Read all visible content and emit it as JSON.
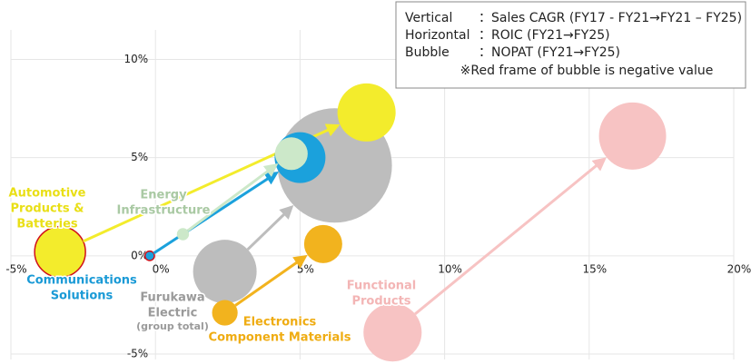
{
  "chart_data": {
    "type": "bubble",
    "legend": {
      "rows": [
        [
          "Vertical",
          "：Sales CAGR (FY17 - FY21→FY21 – FY25)"
        ],
        [
          "Horizontal",
          "：ROIC (FY21→FY25)"
        ],
        [
          "Bubble",
          "：NOPAT (FY21→FY25)"
        ]
      ],
      "note": "※Red frame of bubble is negative value"
    },
    "xlim": [
      -5,
      20
    ],
    "ylim": [
      -5,
      11.5
    ],
    "xticks": [
      {
        "value": -5,
        "label": "-5%"
      },
      {
        "value": 0,
        "label": "0%"
      },
      {
        "value": 5,
        "label": "5%"
      },
      {
        "value": 10,
        "label": "10%"
      },
      {
        "value": 15,
        "label": "15%"
      },
      {
        "value": 20,
        "label": "20%"
      }
    ],
    "yticks": [
      {
        "value": -5,
        "label": "-5%"
      },
      {
        "value": 0,
        "label": "0%"
      },
      {
        "value": 5,
        "label": "5%"
      },
      {
        "value": 10,
        "label": "10%"
      }
    ],
    "grid": true,
    "series": [
      {
        "name": [
          "Furukawa",
          "Electric"
        ],
        "note": "(group total)",
        "color": "#bdbdbd",
        "label_color": "#9a9a9a",
        "x": [
          2.4,
          6.2
        ],
        "y": [
          -0.8,
          4.6
        ],
        "size": [
          136,
          441
        ]
      },
      {
        "name": [
          "Functional",
          "Products"
        ],
        "color": "#f7c3c3",
        "label_color": "#f3b5b5",
        "x": [
          8.2,
          16.5
        ],
        "y": [
          -3.9,
          6.1
        ],
        "size": [
          114,
          152
        ]
      },
      {
        "name": [
          "Electronics",
          "Component Materials"
        ],
        "color": "#f2b31e",
        "label_color": "#efac12",
        "x": [
          2.4,
          5.8
        ],
        "y": [
          -2.9,
          0.6
        ],
        "size": [
          22,
          49
        ]
      },
      {
        "name": [
          "Automotive",
          "Products &",
          "Batteries"
        ],
        "color": "#f3ec2c",
        "label_color": "#e9df16",
        "x": [
          -3.3,
          7.3
        ],
        "y": [
          0.2,
          7.3
        ],
        "size": [
          -87,
          114
        ]
      },
      {
        "name": [
          "Communications",
          "Solutions"
        ],
        "color": "#1ba1dc",
        "label_color": "#1a9ad6",
        "x": [
          -0.2,
          5.0
        ],
        "y": [
          0,
          5.0
        ],
        "size": [
          -3,
          87
        ]
      },
      {
        "name": [
          "Energy",
          "Infrastructure"
        ],
        "color": "#cce8c9",
        "label_color": "#a9c9a3",
        "x": [
          0.95,
          4.7
        ],
        "y": [
          1.1,
          5.2
        ],
        "size": [
          5,
          36
        ]
      }
    ]
  }
}
